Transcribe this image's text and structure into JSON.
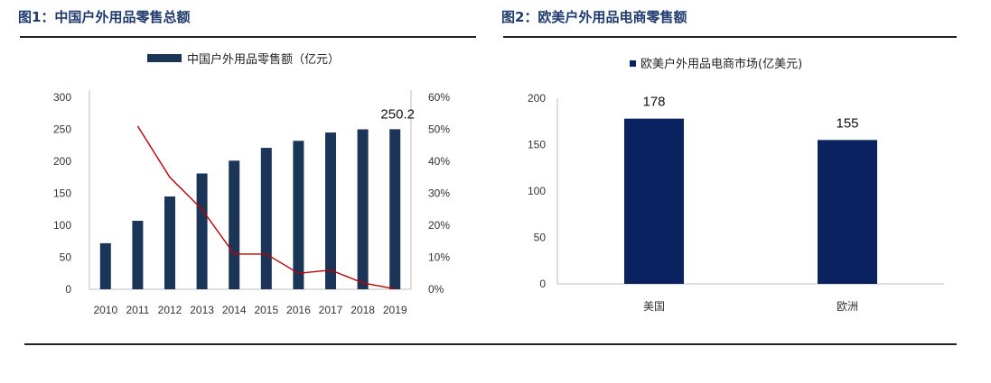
{
  "figure1": {
    "title": "图1：中国户外用品零售总额"
  },
  "figure2": {
    "title": "图2：欧美户外用品电商零售额"
  },
  "chart_data": [
    {
      "type": "bar",
      "title": "图1：中国户外用品零售总额",
      "categories": [
        "2010",
        "2011",
        "2012",
        "2013",
        "2014",
        "2015",
        "2016",
        "2017",
        "2018",
        "2019"
      ],
      "series": [
        {
          "name": "中国户外用品零售额（亿元）",
          "type": "bar",
          "axis": "left",
          "values": [
            72,
            107,
            145,
            181,
            201,
            221,
            232,
            245,
            250,
            250.2
          ]
        },
        {
          "type": "line",
          "axis": "right",
          "values": [
            null,
            0.51,
            0.35,
            0.25,
            0.11,
            0.11,
            0.05,
            0.06,
            0.02,
            0.001
          ]
        }
      ],
      "y_left": {
        "ticks": [
          "0",
          "50",
          "100",
          "150",
          "200",
          "250",
          "300"
        ],
        "ylim": [
          0,
          300
        ]
      },
      "y_right": {
        "ticks": [
          "0%",
          "10%",
          "20%",
          "30%",
          "40%",
          "50%",
          "60%"
        ],
        "ylim": [
          0,
          0.6
        ]
      },
      "data_labels": [
        {
          "category": "2019",
          "text": "250.2"
        }
      ],
      "legend": "top",
      "colors": {
        "bar": "#1b3558",
        "line": "#c00000"
      }
    },
    {
      "type": "bar",
      "title": "图2：欧美户外用品电商零售额",
      "categories": [
        "美国",
        "欧洲"
      ],
      "series": [
        {
          "name": "欧美户外用品电商市场(亿美元)",
          "values": [
            178,
            155
          ]
        }
      ],
      "y": {
        "ticks": [
          "0",
          "50",
          "100",
          "150",
          "200"
        ],
        "ylim": [
          0,
          200
        ]
      },
      "data_labels": [
        "178",
        "155"
      ],
      "legend": "top",
      "colors": {
        "bar": "#0b2260"
      }
    }
  ]
}
